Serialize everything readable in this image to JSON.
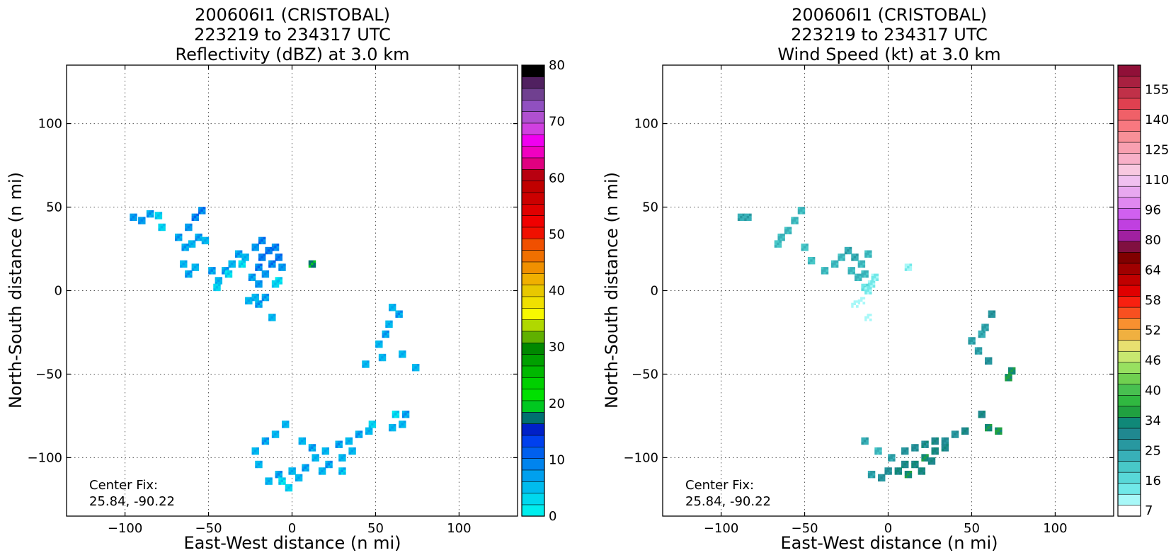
{
  "chart_data": [
    {
      "type": "heatmap",
      "title": [
        "200606I1 (CRISTOBAL)",
        "223219 to 234317 UTC",
        "Reflectivity (dBZ) at 3.0 km"
      ],
      "xlabel": "East-West distance (n mi)",
      "ylabel": "North-South distance (n mi)",
      "xlim": [
        -135,
        135
      ],
      "ylim": [
        -135,
        135
      ],
      "xticks": [
        -100,
        -50,
        0,
        50,
        100
      ],
      "yticks": [
        -100,
        -50,
        0,
        50,
        100
      ],
      "xtick_labels": [
        "−100",
        "−50",
        "0",
        "50",
        "100"
      ],
      "ytick_labels": [
        "−100",
        "−50",
        "0",
        "50",
        "100"
      ],
      "grid": true,
      "annotation": [
        "Center Fix:",
        "25.84, -90.22"
      ],
      "colorbar": {
        "min": 0,
        "max": 80,
        "ticks": [
          0,
          10,
          20,
          30,
          40,
          50,
          60,
          70,
          80
        ],
        "tick_labels": [
          "0",
          "10",
          "20",
          "30",
          "40",
          "50",
          "60",
          "70",
          "80"
        ],
        "colors": [
          "#00eeee",
          "#00d8ee",
          "#00bcee",
          "#00a0ee",
          "#0084ee",
          "#0060ee",
          "#0040ee",
          "#0020c8",
          "#007070",
          "#00c820",
          "#00e000",
          "#00d000",
          "#00b800",
          "#00a000",
          "#008800",
          "#60b000",
          "#b0d800",
          "#f8f800",
          "#f0e000",
          "#e8c800",
          "#f0b000",
          "#f09000",
          "#f07000",
          "#f05000",
          "#f01000",
          "#f00000",
          "#e00000",
          "#cc0000",
          "#c00000",
          "#b80010",
          "#e00080",
          "#f000c0",
          "#f000f0",
          "#d040e0",
          "#b050d0",
          "#9050c0",
          "#704090",
          "#502060",
          "#000000"
        ]
      },
      "cells": [
        [
          -95,
          44,
          3,
          8
        ],
        [
          -90,
          42,
          3,
          8
        ],
        [
          -85,
          46,
          3,
          7
        ],
        [
          -80,
          45,
          3,
          4
        ],
        [
          -78,
          38,
          3,
          4
        ],
        [
          -68,
          32,
          3,
          7
        ],
        [
          -62,
          38,
          3,
          8
        ],
        [
          -58,
          44,
          3,
          9
        ],
        [
          -54,
          48,
          3,
          9
        ],
        [
          -60,
          28,
          3,
          6
        ],
        [
          -56,
          32,
          3,
          7
        ],
        [
          -52,
          30,
          3,
          6
        ],
        [
          -64,
          26,
          3,
          7
        ],
        [
          -65,
          16,
          3,
          6
        ],
        [
          -62,
          10,
          3,
          7
        ],
        [
          -58,
          14,
          3,
          6
        ],
        [
          -48,
          12,
          3,
          7
        ],
        [
          -44,
          6,
          3,
          6
        ],
        [
          -40,
          12,
          3,
          7
        ],
        [
          -36,
          16,
          3,
          6
        ],
        [
          -32,
          22,
          3,
          7
        ],
        [
          -28,
          20,
          3,
          6
        ],
        [
          -45,
          2,
          3,
          4
        ],
        [
          -38,
          10,
          3,
          3
        ],
        [
          -30,
          16,
          3,
          3
        ],
        [
          -22,
          26,
          3,
          8
        ],
        [
          -18,
          30,
          3,
          9
        ],
        [
          -14,
          24,
          3,
          10
        ],
        [
          -10,
          26,
          3,
          9
        ],
        [
          -20,
          14,
          3,
          9
        ],
        [
          -16,
          10,
          3,
          8
        ],
        [
          -12,
          16,
          3,
          9
        ],
        [
          -8,
          20,
          3,
          10
        ],
        [
          -6,
          14,
          3,
          8
        ],
        [
          -24,
          8,
          3,
          7
        ],
        [
          -20,
          4,
          3,
          8
        ],
        [
          -8,
          6,
          3,
          3
        ],
        [
          -10,
          4,
          3,
          4
        ],
        [
          -18,
          20,
          3,
          10
        ],
        [
          -26,
          -6,
          3,
          6
        ],
        [
          -20,
          -8,
          3,
          7
        ],
        [
          -16,
          -4,
          3,
          7
        ],
        [
          -12,
          -16,
          3,
          6
        ],
        [
          -22,
          -4,
          3,
          6
        ],
        [
          12,
          16,
          3,
          18
        ],
        [
          60,
          -10,
          3,
          6
        ],
        [
          64,
          -14,
          3,
          7
        ],
        [
          58,
          -20,
          3,
          6
        ],
        [
          56,
          -26,
          3,
          7
        ],
        [
          52,
          -32,
          3,
          6
        ],
        [
          66,
          -38,
          3,
          6
        ],
        [
          74,
          -46,
          3,
          6
        ],
        [
          44,
          -44,
          3,
          6
        ],
        [
          54,
          -40,
          3,
          6
        ],
        [
          -22,
          -96,
          3,
          6
        ],
        [
          -16,
          -90,
          3,
          7
        ],
        [
          -10,
          -86,
          3,
          6
        ],
        [
          -4,
          -80,
          3,
          6
        ],
        [
          6,
          -90,
          3,
          6
        ],
        [
          12,
          -94,
          3,
          7
        ],
        [
          20,
          -96,
          3,
          6
        ],
        [
          28,
          -92,
          3,
          7
        ],
        [
          34,
          -90,
          3,
          6
        ],
        [
          40,
          -86,
          3,
          7
        ],
        [
          46,
          -84,
          3,
          6
        ],
        [
          14,
          -100,
          3,
          6
        ],
        [
          22,
          -104,
          3,
          7
        ],
        [
          30,
          -100,
          3,
          6
        ],
        [
          8,
          -106,
          3,
          7
        ],
        [
          0,
          -108,
          3,
          6
        ],
        [
          -8,
          -110,
          3,
          7
        ],
        [
          -14,
          -114,
          3,
          6
        ],
        [
          4,
          -112,
          3,
          6
        ],
        [
          18,
          -108,
          3,
          6
        ],
        [
          36,
          -96,
          3,
          6
        ],
        [
          -20,
          -104,
          3,
          6
        ],
        [
          60,
          -82,
          3,
          6
        ],
        [
          66,
          -80,
          3,
          6
        ],
        [
          68,
          -74,
          3,
          7
        ],
        [
          62,
          -74,
          3,
          3
        ],
        [
          48,
          -80,
          3,
          4
        ],
        [
          -2,
          -118,
          3,
          4
        ],
        [
          -6,
          -114,
          3,
          3
        ],
        [
          30,
          -108,
          3,
          5
        ]
      ]
    },
    {
      "type": "heatmap",
      "title": [
        "200606I1 (CRISTOBAL)",
        "223219 to 234317 UTC",
        "Wind Speed (kt) at 3.0 km"
      ],
      "xlabel": "East-West distance (n mi)",
      "ylabel": "North-South distance (n mi)",
      "xlim": [
        -135,
        135
      ],
      "ylim": [
        -135,
        135
      ],
      "xticks": [
        -100,
        -50,
        0,
        50,
        100
      ],
      "yticks": [
        -100,
        -50,
        0,
        50,
        100
      ],
      "xtick_labels": [
        "−100",
        "−50",
        "0",
        "50",
        "100"
      ],
      "ytick_labels": [
        "−100",
        "−50",
        "0",
        "50",
        "100"
      ],
      "grid": true,
      "annotation": [
        "Center Fix:",
        "25.84, -90.22"
      ],
      "colorbar": {
        "min": 7,
        "max": 160,
        "ticks": [
          7,
          16,
          25,
          34,
          40,
          46,
          52,
          58,
          64,
          80,
          96,
          110,
          125,
          140,
          155
        ],
        "tick_labels": [
          "7",
          "16",
          "25",
          "34",
          "40",
          "46",
          "52",
          "58",
          "64",
          "80",
          "96",
          "110",
          "125",
          "140",
          "155"
        ],
        "colors": [
          "#ffffff",
          "#a8f8f8",
          "#70e8e8",
          "#58d8d8",
          "#48c8c8",
          "#38b0b8",
          "#2898a0",
          "#208890",
          "#108878",
          "#20a040",
          "#30b840",
          "#48c050",
          "#70d050",
          "#98e060",
          "#c8e870",
          "#e8e070",
          "#f0b040",
          "#f89030",
          "#f85020",
          "#f82010",
          "#e00000",
          "#c00000",
          "#a00000",
          "#800000",
          "#801040",
          "#a020a0",
          "#c040e0",
          "#d060f0",
          "#e088f0",
          "#e8a8f0",
          "#f0c0f0",
          "#f8c8e0",
          "#f8b0c8",
          "#f8a0b0",
          "#f89098",
          "#f87880",
          "#f06068",
          "#e04050",
          "#c03048",
          "#a82040",
          "#901038"
        ]
      },
      "cells": [
        [
          -88,
          44,
          3,
          28
        ],
        [
          -84,
          44,
          3,
          28
        ],
        [
          -64,
          32,
          3,
          26
        ],
        [
          -60,
          36,
          3,
          26
        ],
        [
          -56,
          42,
          3,
          27
        ],
        [
          -52,
          48,
          3,
          26
        ],
        [
          -66,
          28,
          3,
          25
        ],
        [
          -50,
          26,
          3,
          25
        ],
        [
          -46,
          18,
          3,
          24
        ],
        [
          -38,
          12,
          3,
          26
        ],
        [
          -32,
          16,
          3,
          27
        ],
        [
          -28,
          20,
          3,
          26
        ],
        [
          -24,
          24,
          3,
          28
        ],
        [
          -22,
          12,
          3,
          27
        ],
        [
          -18,
          8,
          3,
          26
        ],
        [
          -20,
          20,
          3,
          28
        ],
        [
          -16,
          16,
          3,
          27
        ],
        [
          -12,
          22,
          3,
          27
        ],
        [
          -14,
          10,
          3,
          26
        ],
        [
          -10,
          4,
          3,
          16
        ],
        [
          -8,
          8,
          3,
          16
        ],
        [
          -14,
          2,
          3,
          18
        ],
        [
          -12,
          0,
          3,
          16
        ],
        [
          -20,
          -8,
          3,
          12
        ],
        [
          -16,
          -6,
          3,
          12
        ],
        [
          -12,
          -16,
          3,
          11
        ],
        [
          12,
          14,
          3,
          14
        ],
        [
          50,
          -30,
          3,
          30
        ],
        [
          56,
          -26,
          3,
          29
        ],
        [
          54,
          -36,
          3,
          30
        ],
        [
          62,
          -14,
          3,
          33
        ],
        [
          58,
          -22,
          3,
          31
        ],
        [
          74,
          -48,
          3,
          40
        ],
        [
          72,
          -52,
          3,
          42
        ],
        [
          60,
          -42,
          3,
          33
        ],
        [
          -6,
          -96,
          3,
          26
        ],
        [
          2,
          -100,
          3,
          30
        ],
        [
          10,
          -96,
          3,
          32
        ],
        [
          16,
          -94,
          3,
          34
        ],
        [
          22,
          -92,
          3,
          35
        ],
        [
          28,
          -90,
          3,
          36
        ],
        [
          34,
          -90,
          3,
          34
        ],
        [
          40,
          -86,
          3,
          33
        ],
        [
          46,
          -84,
          3,
          36
        ],
        [
          10,
          -104,
          3,
          36
        ],
        [
          16,
          -104,
          3,
          38
        ],
        [
          22,
          -100,
          3,
          40
        ],
        [
          28,
          -96,
          3,
          38
        ],
        [
          34,
          -94,
          3,
          36
        ],
        [
          0,
          -108,
          3,
          34
        ],
        [
          6,
          -108,
          3,
          38
        ],
        [
          -4,
          -112,
          3,
          33
        ],
        [
          12,
          -110,
          3,
          40
        ],
        [
          20,
          -108,
          3,
          38
        ],
        [
          26,
          -102,
          3,
          36
        ],
        [
          -10,
          -110,
          3,
          30
        ],
        [
          56,
          -74,
          3,
          36
        ],
        [
          60,
          -82,
          3,
          40
        ],
        [
          66,
          -84,
          3,
          41
        ],
        [
          -14,
          -90,
          3,
          28
        ]
      ]
    }
  ]
}
